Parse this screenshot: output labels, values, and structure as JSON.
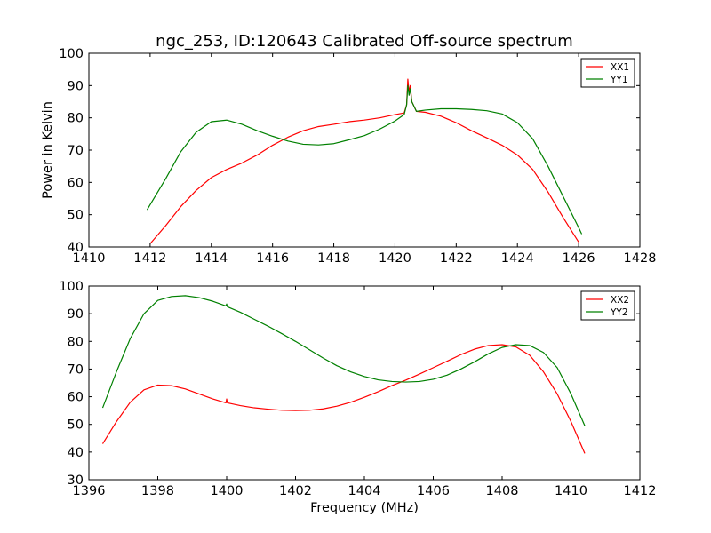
{
  "title": "ngc_253, ID:120643 Calibrated Off-source spectrum",
  "chart_data": [
    {
      "type": "line",
      "title": "ngc_253, ID:120643 Calibrated Off-source spectrum",
      "xlabel": "",
      "ylabel": "Power in Kelvin",
      "xlim": [
        1410,
        1428
      ],
      "ylim": [
        40,
        100
      ],
      "xticks": [
        "1410",
        "1412",
        "1414",
        "1416",
        "1418",
        "1420",
        "1422",
        "1424",
        "1426",
        "1428"
      ],
      "yticks": [
        "40",
        "50",
        "60",
        "70",
        "80",
        "90",
        "100"
      ],
      "grid": false,
      "legend_position": "top-right",
      "series": [
        {
          "name": "XX1",
          "color": "#ff0000",
          "x": [
            1412.0,
            1412.5,
            1413.0,
            1413.5,
            1414.0,
            1414.5,
            1415.0,
            1415.5,
            1416.0,
            1416.5,
            1417.0,
            1417.5,
            1418.0,
            1418.5,
            1419.0,
            1419.5,
            1420.0,
            1420.3,
            1420.38,
            1420.42,
            1420.46,
            1420.5,
            1420.55,
            1420.7,
            1421.0,
            1421.5,
            1422.0,
            1422.5,
            1423.0,
            1423.5,
            1424.0,
            1424.5,
            1425.0,
            1425.5,
            1426.0
          ],
          "y": [
            41,
            46.5,
            52.5,
            57.5,
            61.5,
            64,
            66,
            68.5,
            71.5,
            74,
            76,
            77.3,
            78,
            78.8,
            79.3,
            80,
            81,
            81.5,
            84,
            92,
            88,
            90,
            85,
            82,
            81.7,
            80.5,
            78.5,
            76,
            73.8,
            71.5,
            68.5,
            64,
            57,
            49,
            41.5
          ]
        },
        {
          "name": "YY1",
          "color": "#008000",
          "x": [
            1411.9,
            1412.5,
            1413.0,
            1413.5,
            1414.0,
            1414.5,
            1415.0,
            1415.5,
            1416.0,
            1416.5,
            1417.0,
            1417.5,
            1418.0,
            1418.5,
            1419.0,
            1419.5,
            1420.0,
            1420.3,
            1420.38,
            1420.42,
            1420.46,
            1420.5,
            1420.55,
            1420.7,
            1421.0,
            1421.5,
            1422.0,
            1422.5,
            1423.0,
            1423.5,
            1424.0,
            1424.5,
            1425.0,
            1425.5,
            1426.0,
            1426.1
          ],
          "y": [
            51.5,
            61,
            69.5,
            75.5,
            78.8,
            79.3,
            78,
            76,
            74.3,
            72.8,
            71.8,
            71.6,
            72,
            73.2,
            74.5,
            76.5,
            79,
            81,
            84,
            90,
            87,
            89,
            85,
            82,
            82.4,
            82.8,
            82.8,
            82.6,
            82.2,
            81.2,
            78.5,
            73.5,
            65,
            55.5,
            46,
            44
          ]
        }
      ]
    },
    {
      "type": "line",
      "title": "",
      "xlabel": "Frequency (MHz)",
      "ylabel": "",
      "xlim": [
        1396,
        1412
      ],
      "ylim": [
        30,
        100
      ],
      "xticks": [
        "1396",
        "1398",
        "1400",
        "1402",
        "1404",
        "1406",
        "1408",
        "1410",
        "1412"
      ],
      "yticks": [
        "30",
        "40",
        "50",
        "60",
        "70",
        "80",
        "90",
        "100"
      ],
      "grid": false,
      "legend_position": "top-right",
      "series": [
        {
          "name": "XX2",
          "color": "#ff0000",
          "x": [
            1396.4,
            1396.8,
            1397.2,
            1397.6,
            1398.0,
            1398.4,
            1398.8,
            1399.2,
            1399.6,
            1399.98,
            1400.0,
            1400.02,
            1400.4,
            1400.8,
            1401.2,
            1401.6,
            1402.0,
            1402.4,
            1402.8,
            1403.2,
            1403.6,
            1404.0,
            1404.4,
            1404.8,
            1405.2,
            1405.6,
            1406.0,
            1406.4,
            1406.8,
            1407.2,
            1407.6,
            1408.0,
            1408.4,
            1408.8,
            1409.2,
            1409.6,
            1410.0,
            1410.4
          ],
          "y": [
            43,
            51,
            58,
            62.5,
            64.2,
            64,
            62.8,
            61,
            59.2,
            57.8,
            59.2,
            57.8,
            56.8,
            56,
            55.5,
            55.1,
            55,
            55.1,
            55.6,
            56.6,
            58,
            59.8,
            61.8,
            64,
            66,
            68.2,
            70.5,
            72.8,
            75.2,
            77.2,
            78.5,
            78.8,
            78,
            75,
            69,
            61,
            51,
            39.5
          ]
        },
        {
          "name": "YY2",
          "color": "#008000",
          "x": [
            1396.4,
            1396.8,
            1397.2,
            1397.6,
            1398.0,
            1398.4,
            1398.8,
            1399.2,
            1399.6,
            1399.98,
            1400.0,
            1400.02,
            1400.4,
            1400.8,
            1401.2,
            1401.6,
            1402.0,
            1402.4,
            1402.8,
            1403.2,
            1403.6,
            1404.0,
            1404.4,
            1404.8,
            1405.2,
            1405.6,
            1406.0,
            1406.4,
            1406.8,
            1407.2,
            1407.6,
            1408.0,
            1408.4,
            1408.8,
            1409.2,
            1409.6,
            1410.0,
            1410.4
          ],
          "y": [
            56,
            69,
            81,
            90,
            94.8,
            96.2,
            96.5,
            95.8,
            94.5,
            92.8,
            93.5,
            92.5,
            90.5,
            88,
            85.5,
            82.8,
            80,
            77,
            74,
            71.2,
            69,
            67.3,
            66.1,
            65.5,
            65.3,
            65.5,
            66.3,
            67.8,
            70,
            72.6,
            75.5,
            77.8,
            78.8,
            78.5,
            76,
            70.5,
            61,
            49.5
          ]
        }
      ]
    }
  ]
}
